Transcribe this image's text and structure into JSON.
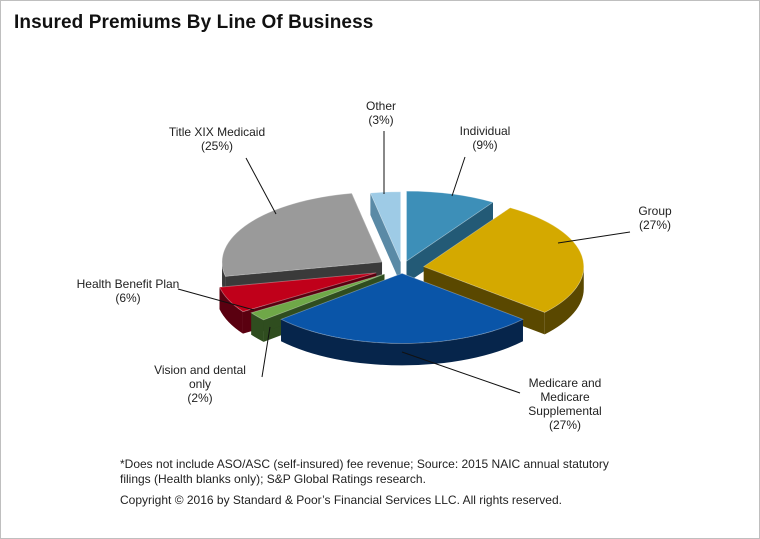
{
  "title": "Insured Premiums By Line Of Business",
  "chart_data": {
    "type": "pie",
    "variant": "3d-exploded",
    "title": "Insured Premiums By Line Of Business",
    "slices": [
      {
        "name": "Individual",
        "value": 9,
        "label": "(9%)",
        "color": "#3d8fb8",
        "dark": "#235a76"
      },
      {
        "name": "Group",
        "value": 27,
        "label": "(27%)",
        "color": "#d4a900",
        "dark": "#5a4800"
      },
      {
        "name": "Medicare and Medicare Supplemental",
        "value": 27,
        "label": "(27%)",
        "color": "#0a55a8",
        "dark": "#06254b"
      },
      {
        "name": "Vision and dental only",
        "value": 2,
        "label": "(2%)",
        "color": "#6fa848",
        "dark": "#2f4d1f"
      },
      {
        "name": "Health Benefit Plan",
        "value": 6,
        "label": "(6%)",
        "color": "#c0001a",
        "dark": "#5a0010"
      },
      {
        "name": "Title XIX Medicaid",
        "value": 25,
        "label": "(25%)",
        "color": "#9a9a9a",
        "dark": "#3a3a3a"
      },
      {
        "name": "Other",
        "value": 3,
        "label": "(3%)",
        "color": "#9ecbe6",
        "dark": "#5a8aa6"
      }
    ]
  },
  "labels": {
    "individual": [
      "Individual",
      "(9%)"
    ],
    "group": [
      "Group",
      "(27%)"
    ],
    "medicare": [
      "Medicare and",
      "Medicare",
      "Supplemental",
      "(27%)"
    ],
    "vision": [
      "Vision and dental",
      "only",
      "(2%)"
    ],
    "health": [
      "Health  Benefit Plan",
      "(6%)"
    ],
    "medicaid": [
      "Title XIX Medicaid",
      "(25%)"
    ],
    "other": [
      "Other",
      "(3%)"
    ]
  },
  "footnote": "*Does not include ASO/ASC (self-insured) fee revenue; Source: 2015 NAIC annual statutory filings (Health blanks only); S&P Global Ratings research.",
  "copyright": "Copyright © 2016 by Standard & Poor’s Financial Services LLC. All rights reserved."
}
